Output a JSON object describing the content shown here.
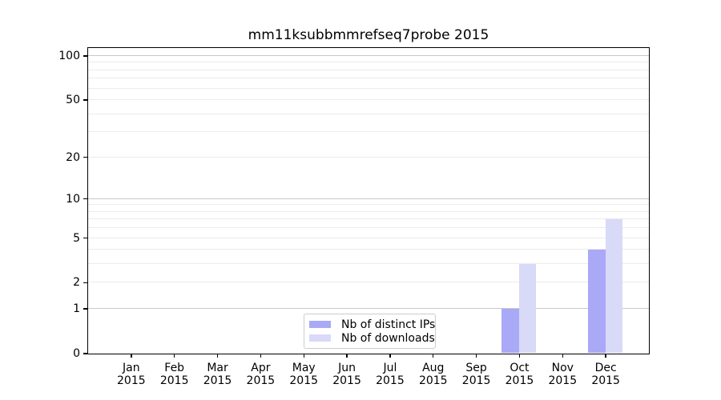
{
  "chart_data": {
    "type": "bar",
    "title": "mm11ksubbmmrefseq7probe 2015",
    "categories": [
      "Jan",
      "Feb",
      "Mar",
      "Apr",
      "May",
      "Jun",
      "Jul",
      "Aug",
      "Sep",
      "Oct",
      "Nov",
      "Dec"
    ],
    "x_tick_year": "2015",
    "series": [
      {
        "name": "Nb of distinct IPs",
        "color": "#a9a9f8",
        "values": [
          0,
          0,
          0,
          0,
          0,
          0,
          0,
          0,
          0,
          1,
          0,
          4
        ]
      },
      {
        "name": "Nb of downloads",
        "color": "#d9d9f8",
        "values": [
          0,
          0,
          0,
          0,
          0,
          0,
          0,
          0,
          0,
          3,
          0,
          7
        ]
      }
    ],
    "yscale": "log1p",
    "ylim": [
      0,
      113
    ],
    "yticks": [
      {
        "value": 100,
        "label": "100"
      },
      {
        "value": 50,
        "label": "50"
      },
      {
        "value": 20,
        "label": "20"
      },
      {
        "value": 10,
        "label": "10"
      },
      {
        "value": 5,
        "label": "5"
      },
      {
        "value": 2,
        "label": "2"
      },
      {
        "value": 1,
        "label": "1"
      },
      {
        "value": 0,
        "label": "0"
      }
    ],
    "major_gridlines": [
      1,
      10,
      100
    ],
    "minor_gridlines": [
      2,
      3,
      4,
      5,
      6,
      7,
      8,
      9,
      20,
      30,
      40,
      50,
      60,
      70,
      80,
      90
    ],
    "grid": "horizontal",
    "legend_position": "inside-bottom-center"
  },
  "colors": {
    "background": "#ffffff",
    "spine": "#000000",
    "text": "#000000",
    "major_grid": "#c8c8c8",
    "minor_grid": "#ebebeb",
    "legend_border": "#cccccc"
  }
}
